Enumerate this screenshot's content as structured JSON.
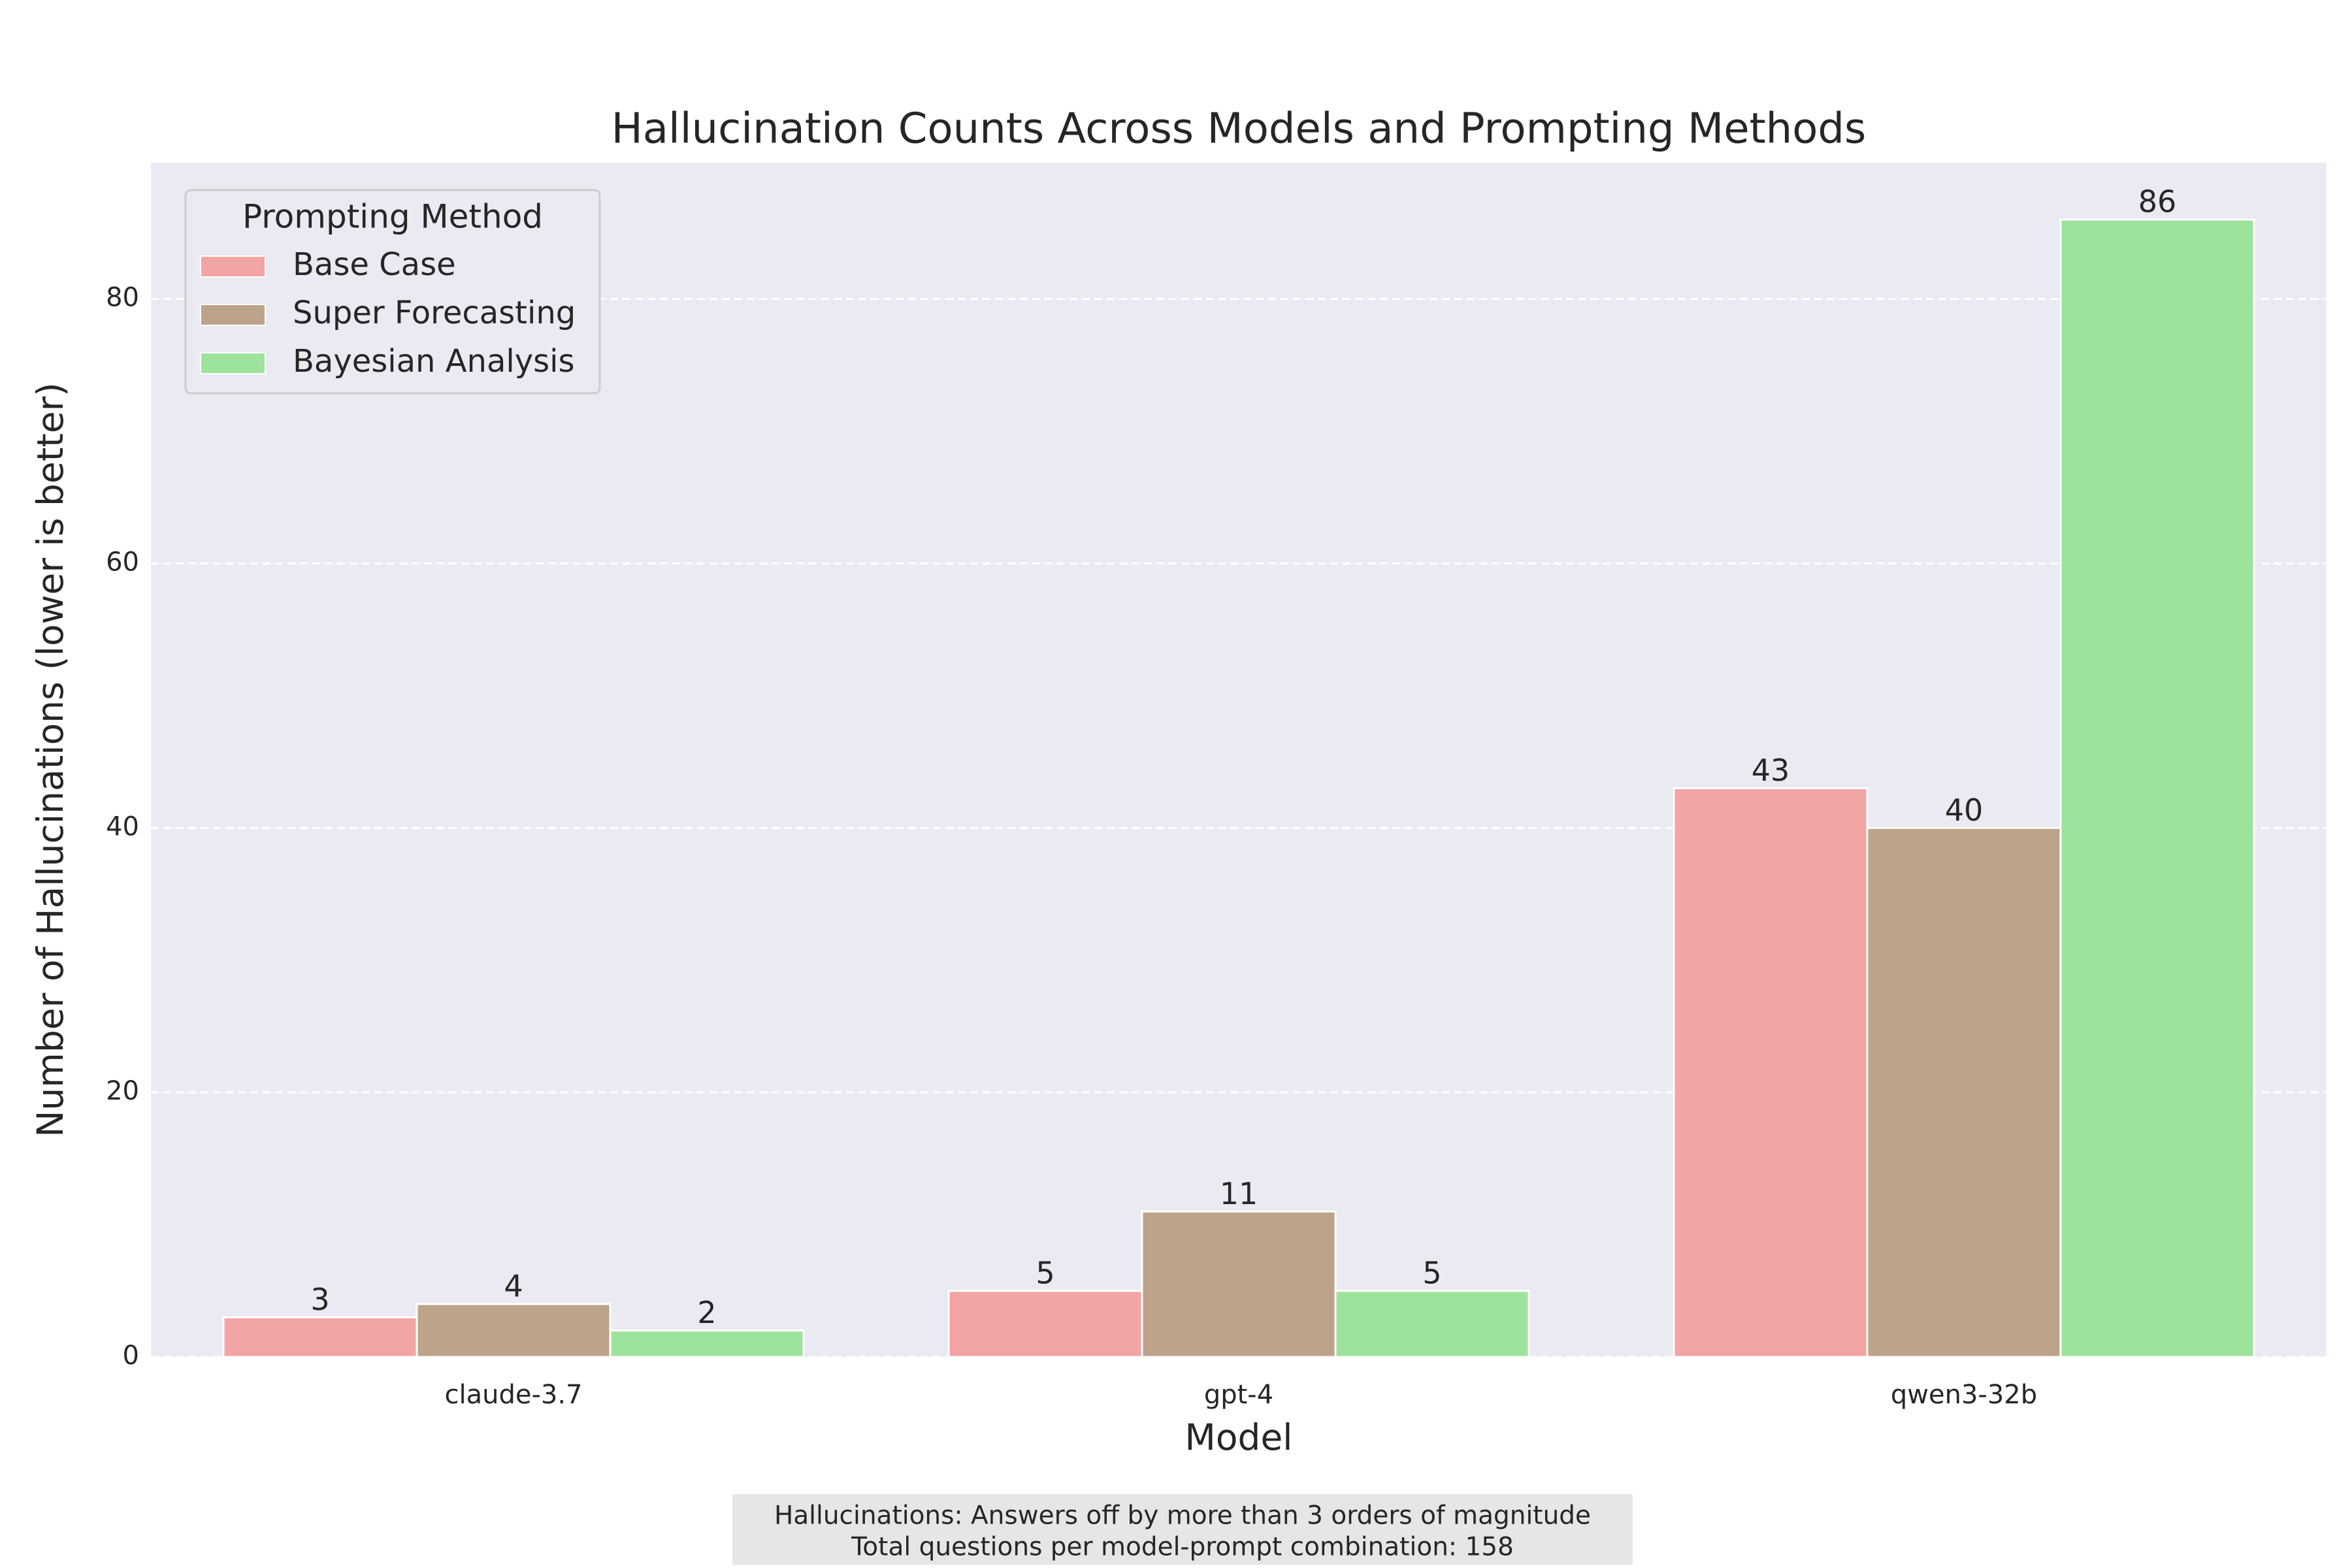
{
  "chart_data": {
    "type": "bar",
    "title": "Hallucination Counts Across Models and Prompting Methods",
    "x_label": "Model",
    "y_label": "Number of Hallucinations (lower is better)",
    "categories": [
      "claude-3.7",
      "gpt-4",
      "qwen3-32b"
    ],
    "series": [
      {
        "name": "Base Case",
        "color": "#f2a5a4",
        "values": [
          3,
          5,
          43
        ]
      },
      {
        "name": "Super Forecasting",
        "color": "#bca38a",
        "values": [
          4,
          11,
          40
        ]
      },
      {
        "name": "Bayesian Analysis",
        "color": "#9ee39b",
        "values": [
          2,
          5,
          86
        ]
      }
    ],
    "ylim": [
      0,
      90.3
    ],
    "yticks": [
      0,
      20,
      40,
      60,
      80
    ],
    "grid": true,
    "legend_title": "Prompting Method",
    "legend": "upper left",
    "footnote": [
      "Hallucinations: Answers off by more than 3 orders of magnitude",
      "Total questions per model-prompt combination: 158"
    ]
  }
}
